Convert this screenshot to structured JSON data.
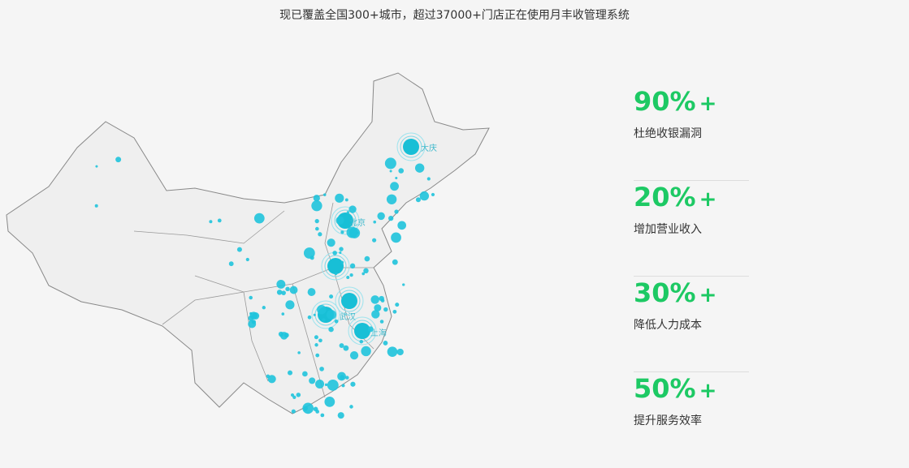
{
  "header": {
    "title": "现已覆盖全国300+城市，超过37000+门店正在使用月丰收管理系统"
  },
  "map": {
    "labels": [
      "大庆",
      "北京",
      "武汉",
      "上海"
    ]
  },
  "stats": [
    {
      "value": "90%",
      "plus": "+",
      "label": "杜绝收银漏洞"
    },
    {
      "value": "20%",
      "plus": "+",
      "label": "增加营业收入"
    },
    {
      "value": "30%",
      "plus": "+",
      "label": "降低人力成本"
    },
    {
      "value": "50%",
      "plus": "+",
      "label": "提升服务效率"
    }
  ]
}
